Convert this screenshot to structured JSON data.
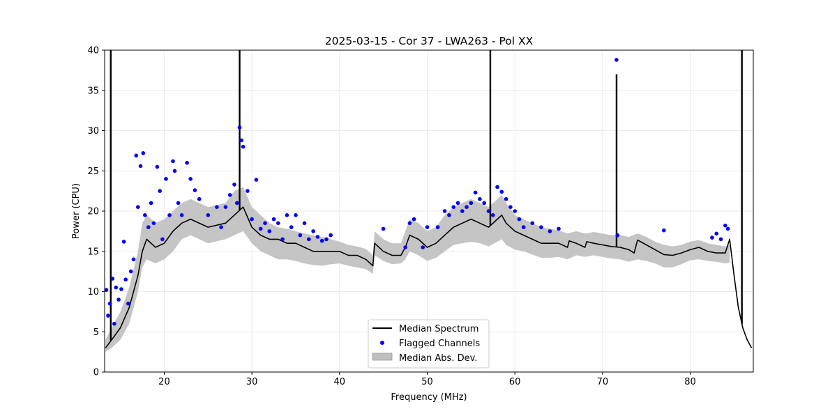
{
  "chart_data": {
    "type": "line",
    "title": "2025-03-15 - Cor 37 - LWA263 - Pol XX",
    "xlabel": "Frequency (MHz)",
    "ylabel": "Power (CPU)",
    "xlim": [
      13.2,
      87.2
    ],
    "ylim": [
      0,
      40
    ],
    "xticks": [
      20,
      30,
      40,
      50,
      60,
      70,
      80
    ],
    "yticks": [
      0,
      5,
      10,
      15,
      20,
      25,
      30,
      35,
      40
    ],
    "grid": true,
    "legend": {
      "placement": "lower-center",
      "entries": [
        "Median Spectrum",
        "Flagged Channels",
        "Median Abs. Dev."
      ]
    },
    "colors": {
      "median": "#000000",
      "flagged": "#0000ff",
      "mad": "#bfbfbf",
      "grid": "#e6e6e6"
    },
    "series": [
      {
        "name": "Median Spectrum",
        "x": [
          13.3,
          14.0,
          15.0,
          16.0,
          17.0,
          17.5,
          18.0,
          19.0,
          20.0,
          21.0,
          22.0,
          23.0,
          25.0,
          27.0,
          28.0,
          29.0,
          30.0,
          31.0,
          32.0,
          33.0,
          34.0,
          35.0,
          36.0,
          37.0,
          38.0,
          39.0,
          40.0,
          41.0,
          42.0,
          43.0,
          43.8,
          44.0,
          45.0,
          46.0,
          47.0,
          47.5,
          48.0,
          49.0,
          50.0,
          51.0,
          52.0,
          53.0,
          54.0,
          55.0,
          56.0,
          57.0,
          58.0,
          58.5,
          59.0,
          60.0,
          61.0,
          62.0,
          63.0,
          64.0,
          65.0,
          66.0,
          66.2,
          67.0,
          68.0,
          68.2,
          69.0,
          70.0,
          71.0,
          72.0,
          73.0,
          73.6,
          74.0,
          75.0,
          76.0,
          77.0,
          78.0,
          79.0,
          80.0,
          81.0,
          82.0,
          83.0,
          84.0,
          84.5,
          85.0,
          85.5,
          86.0,
          86.5,
          87.0
        ],
        "y": [
          3.0,
          4.0,
          5.5,
          8.0,
          12.0,
          15.0,
          16.5,
          15.5,
          16.0,
          17.5,
          18.5,
          19.0,
          18.0,
          18.5,
          19.5,
          20.5,
          18.0,
          17.0,
          16.5,
          16.5,
          16.0,
          16.0,
          15.5,
          15.0,
          15.0,
          15.0,
          15.0,
          14.5,
          14.5,
          14.0,
          13.2,
          16.0,
          15.0,
          14.5,
          14.5,
          15.5,
          17.0,
          16.5,
          15.5,
          16.0,
          17.0,
          18.0,
          18.5,
          19.0,
          18.5,
          18.0,
          19.0,
          19.5,
          18.5,
          17.5,
          17.0,
          16.5,
          16.0,
          16.0,
          16.0,
          15.5,
          16.3,
          16.0,
          15.5,
          16.2,
          16.0,
          15.8,
          15.6,
          15.5,
          15.2,
          14.8,
          16.4,
          15.8,
          15.2,
          14.6,
          14.5,
          14.8,
          15.2,
          15.5,
          15.0,
          14.8,
          14.8,
          16.5,
          12.0,
          8.0,
          5.5,
          4.0,
          3.0
        ],
        "spikes": [
          {
            "x": 13.9,
            "y": 40
          },
          {
            "x": 28.6,
            "y": 40
          },
          {
            "x": 57.2,
            "y": 40
          },
          {
            "x": 71.6,
            "y": 37.0
          },
          {
            "x": 85.9,
            "y": 40
          }
        ]
      },
      {
        "name": "Median Abs. Dev.",
        "x": [
          13.3,
          14.0,
          15.0,
          16.0,
          17.0,
          17.5,
          18.0,
          19.0,
          20.0,
          21.0,
          22.0,
          23.0,
          25.0,
          27.0,
          28.0,
          29.0,
          30.0,
          31.0,
          32.0,
          33.0,
          34.0,
          35.0,
          36.0,
          37.0,
          38.0,
          39.0,
          40.0,
          41.0,
          42.0,
          43.0,
          43.8,
          44.0,
          45.0,
          46.0,
          47.0,
          47.5,
          48.0,
          49.0,
          50.0,
          51.0,
          52.0,
          53.0,
          54.0,
          55.0,
          56.0,
          57.0,
          58.0,
          58.5,
          59.0,
          60.0,
          61.0,
          62.0,
          63.0,
          64.0,
          65.0,
          66.0,
          67.0,
          68.0,
          69.0,
          70.0,
          71.0,
          72.0,
          73.0,
          74.0,
          75.0,
          76.0,
          77.0,
          78.0,
          79.0,
          80.0,
          81.0,
          82.0,
          83.0,
          84.0,
          84.5
        ],
        "upper": [
          4.0,
          5.5,
          7.5,
          10.5,
          15.0,
          18.5,
          19.5,
          18.5,
          19.0,
          20.0,
          21.0,
          21.5,
          20.5,
          21.0,
          22.5,
          23.0,
          20.5,
          19.5,
          18.5,
          18.0,
          17.8,
          17.5,
          17.2,
          17.0,
          16.8,
          16.5,
          16.2,
          15.8,
          15.6,
          15.3,
          14.5,
          17.5,
          16.5,
          16.0,
          16.0,
          17.5,
          19.0,
          18.5,
          17.5,
          18.0,
          19.5,
          20.5,
          21.0,
          21.5,
          21.0,
          20.5,
          21.5,
          22.0,
          21.0,
          19.5,
          19.0,
          18.5,
          18.0,
          17.8,
          17.6,
          17.2,
          17.5,
          17.2,
          17.4,
          17.2,
          17.0,
          17.0,
          16.8,
          17.2,
          16.8,
          16.2,
          15.8,
          15.6,
          15.8,
          16.2,
          16.4,
          16.0,
          15.8,
          15.6,
          15.8
        ],
        "lower": [
          2.5,
          3.0,
          4.0,
          6.0,
          10.0,
          13.0,
          14.0,
          13.5,
          14.0,
          15.0,
          16.5,
          17.0,
          16.0,
          16.5,
          17.0,
          17.5,
          16.0,
          15.0,
          14.5,
          14.0,
          14.0,
          13.8,
          13.5,
          13.3,
          13.2,
          13.4,
          13.5,
          13.2,
          13.0,
          12.8,
          12.2,
          14.5,
          13.8,
          13.4,
          13.5,
          14.0,
          15.0,
          14.5,
          13.8,
          14.2,
          15.0,
          15.8,
          16.0,
          16.2,
          16.0,
          15.6,
          16.2,
          16.5,
          15.8,
          15.2,
          15.0,
          14.6,
          14.2,
          14.2,
          14.3,
          14.0,
          14.5,
          14.3,
          14.5,
          14.3,
          14.1,
          14.0,
          13.7,
          14.0,
          13.8,
          13.5,
          13.0,
          13.0,
          13.4,
          13.9,
          14.0,
          13.8,
          13.7,
          13.5,
          13.6
        ]
      },
      {
        "name": "Flagged Channels",
        "x": [
          13.4,
          13.6,
          13.8,
          14.1,
          14.3,
          14.5,
          14.8,
          15.1,
          15.4,
          15.6,
          15.9,
          16.2,
          16.5,
          16.8,
          17.0,
          17.3,
          17.6,
          17.8,
          18.2,
          18.5,
          18.8,
          19.2,
          19.5,
          19.8,
          20.2,
          20.6,
          21.0,
          21.2,
          21.6,
          22.0,
          22.6,
          23.0,
          23.5,
          24.0,
          25.0,
          26.0,
          26.5,
          27.0,
          27.5,
          28.0,
          28.3,
          28.6,
          28.8,
          29.0,
          29.5,
          30.0,
          30.5,
          31.0,
          31.5,
          32.0,
          32.5,
          33.0,
          33.5,
          34.0,
          34.5,
          35.0,
          35.5,
          36.0,
          36.5,
          37.0,
          37.5,
          38.0,
          38.5,
          39.0,
          45.0,
          47.5,
          48.0,
          48.5,
          49.5,
          50.0,
          51.2,
          52.0,
          52.5,
          53.0,
          53.5,
          54.0,
          54.5,
          55.0,
          55.5,
          56.0,
          56.5,
          57.0,
          57.5,
          58.0,
          58.5,
          59.0,
          59.5,
          60.0,
          60.5,
          61.0,
          62.0,
          63.0,
          64.0,
          65.0,
          71.6,
          71.7,
          77.0,
          82.5,
          83.0,
          83.5,
          84.0,
          84.3
        ],
        "y": [
          10.2,
          7.0,
          8.5,
          11.6,
          6.0,
          10.5,
          9.0,
          10.3,
          16.2,
          11.5,
          8.5,
          12.5,
          14.0,
          26.9,
          20.5,
          25.6,
          27.2,
          19.5,
          18.0,
          21.0,
          18.5,
          25.5,
          22.5,
          16.5,
          24.0,
          19.5,
          26.2,
          25.0,
          21.0,
          19.5,
          26.0,
          24.0,
          22.6,
          21.5,
          19.5,
          20.5,
          18.0,
          20.5,
          22.0,
          23.3,
          21.0,
          30.4,
          28.8,
          28.0,
          22.5,
          19.0,
          23.9,
          17.8,
          18.5,
          17.5,
          19.0,
          18.5,
          16.5,
          19.5,
          18.0,
          19.5,
          17.0,
          18.5,
          16.5,
          17.5,
          16.8,
          16.3,
          16.5,
          17.0,
          17.8,
          15.5,
          18.5,
          19.0,
          15.5,
          18.0,
          18.0,
          20.0,
          19.5,
          20.5,
          21.0,
          20.0,
          20.5,
          21.0,
          22.3,
          21.5,
          21.0,
          20.0,
          19.5,
          23.0,
          22.4,
          21.5,
          20.5,
          20.0,
          19.0,
          18.0,
          18.5,
          18.0,
          17.5,
          17.8,
          38.8,
          17.0,
          17.6,
          16.7,
          17.2,
          16.5,
          18.2,
          17.8
        ]
      }
    ]
  }
}
